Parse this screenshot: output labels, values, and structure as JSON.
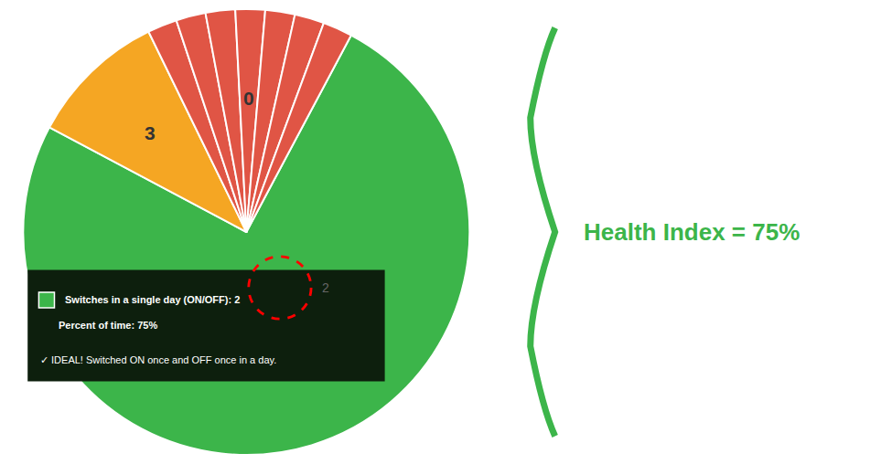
{
  "chart_data": {
    "type": "pie",
    "values": [
      75,
      10,
      2.142857142857143,
      2.142857142857143,
      2.142857142857143,
      2.142857142857143,
      2.142857142857143,
      2.142857142857143,
      2.142857142857143
    ],
    "colors": [
      "#3cb54a",
      "#f5a623",
      "#e05545",
      "#e05545",
      "#e05545",
      "#e05545",
      "#e05545",
      "#e05545",
      "#e05545"
    ],
    "annotations": [
      "3",
      "0",
      "2",
      "Switches in a single day (ON/OFF): 2",
      "Percent of time: 75%",
      "✓ IDEAL! Switched ON once and OFF once in a day.",
      "Health Index = 75%"
    ]
  }
}
